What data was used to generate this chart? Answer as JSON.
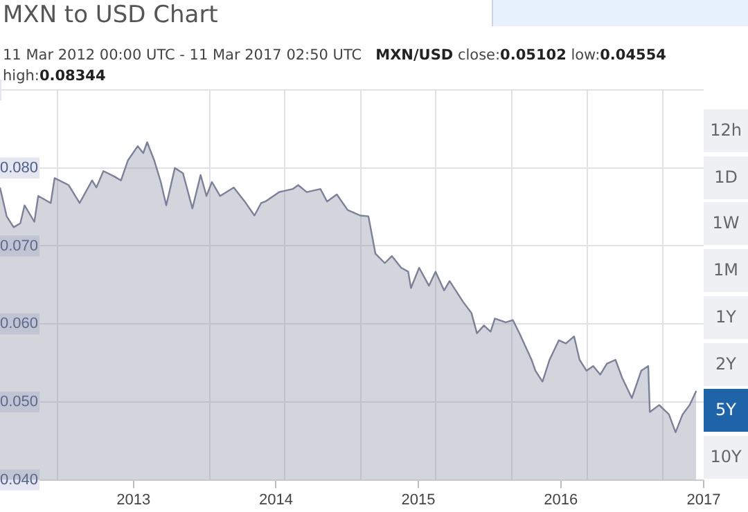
{
  "chart_data": {
    "type": "area",
    "title": "MXN to USD Chart",
    "subtitle": "11 Mar 2012 00:00 UTC - 11 Mar 2017 02:50 UTC",
    "annotations": [
      "MXN/USD close:0.05102 low:0.04554 high:0.08344",
      "12h",
      "1D",
      "1W",
      "1M",
      "1Y",
      "2Y",
      "5Y",
      "10Y"
    ],
    "x": [
      "2012-01-25",
      "2012-02-11",
      "2012-02-29",
      "2012-03-17",
      "2012-03-28",
      "2012-04-22",
      "2012-05-02",
      "2012-06-03",
      "2012-06-13",
      "2012-07-19",
      "2012-08-16",
      "2012-09-17",
      "2012-09-28",
      "2012-10-16",
      "2012-11-13",
      "2012-11-30",
      "2012-12-18",
      "2013-01-12",
      "2013-01-26",
      "2013-02-05",
      "2013-02-23",
      "2013-03-12",
      "2013-03-26",
      "2013-04-17",
      "2013-05-08",
      "2013-06-01",
      "2013-06-22",
      "2013-07-07",
      "2013-07-21",
      "2013-08-11",
      "2013-09-15",
      "2013-10-13",
      "2013-11-07",
      "2013-11-24",
      "2013-12-05",
      "2014-01-09",
      "2014-02-13",
      "2014-02-27",
      "2014-03-21",
      "2014-04-25",
      "2014-05-12",
      "2014-06-06",
      "2014-07-04",
      "2014-08-05",
      "2014-08-26",
      "2014-09-13",
      "2014-10-07",
      "2014-10-25",
      "2014-11-18",
      "2014-12-06",
      "2014-12-13",
      "2015-01-03",
      "2015-01-28",
      "2015-02-14",
      "2015-03-08",
      "2015-03-22",
      "2015-04-26",
      "2015-05-17",
      "2015-05-31",
      "2015-06-18",
      "2015-07-05",
      "2015-07-16",
      "2015-08-13",
      "2015-08-31",
      "2015-09-17",
      "2015-10-18",
      "2015-10-28",
      "2015-11-15",
      "2015-12-03",
      "2015-12-27",
      "2016-01-14",
      "2016-02-04",
      "2016-02-18",
      "2016-03-07",
      "2016-03-24",
      "2016-04-11",
      "2016-04-28",
      "2016-05-20",
      "2016-06-06",
      "2016-07-01",
      "2016-07-25",
      "2016-08-12",
      "2016-08-16",
      "2016-09-09",
      "2016-10-04",
      "2016-10-21",
      "2016-11-08",
      "2016-11-26",
      "2016-12-13"
    ],
    "series": [
      {
        "color": "#7b8199",
        "values": [
          0.0775,
          0.0738,
          0.0724,
          0.0729,
          0.0752,
          0.0731,
          0.0764,
          0.0755,
          0.0787,
          0.0778,
          0.0755,
          0.0784,
          0.0775,
          0.0796,
          0.0789,
          0.0784,
          0.081,
          0.0828,
          0.0819,
          0.0833,
          0.081,
          0.0782,
          0.0752,
          0.08,
          0.0793,
          0.0748,
          0.0791,
          0.0764,
          0.0782,
          0.0764,
          0.0775,
          0.0757,
          0.0739,
          0.0755,
          0.0757,
          0.0769,
          0.0773,
          0.0778,
          0.0769,
          0.0773,
          0.0757,
          0.0766,
          0.0746,
          0.0739,
          0.0738,
          0.069,
          0.0678,
          0.0687,
          0.0672,
          0.0667,
          0.0646,
          0.0672,
          0.0649,
          0.0667,
          0.0643,
          0.0655,
          0.0628,
          0.0614,
          0.0588,
          0.0598,
          0.059,
          0.0607,
          0.0602,
          0.0605,
          0.0588,
          0.0554,
          0.054,
          0.0526,
          0.0554,
          0.0579,
          0.0575,
          0.0584,
          0.0554,
          0.054,
          0.0546,
          0.0535,
          0.0549,
          0.0554,
          0.0531,
          0.0505,
          0.054,
          0.0546,
          0.0487,
          0.0496,
          0.0484,
          0.0461,
          0.0484,
          0.0496,
          0.0514
        ]
      }
    ],
    "xlim": [
      "2012-01-25",
      "2017-01-01"
    ],
    "xticks": [
      {
        "value": "2012-06-21",
        "label": null
      },
      {
        "value": "2013-01-01",
        "label": "2013"
      },
      {
        "value": "2013-07-16",
        "label": null
      },
      {
        "value": "2014-01-01",
        "label": "2014"
      },
      {
        "value": "2014-01-24",
        "label": null
      },
      {
        "value": "2014-08-06",
        "label": null
      },
      {
        "value": "2015-01-01",
        "label": "2015"
      },
      {
        "value": "2015-02-15",
        "label": null
      },
      {
        "value": "2015-08-29",
        "label": null
      },
      {
        "value": "2016-01-01",
        "label": "2016"
      },
      {
        "value": "2016-03-09",
        "label": null
      },
      {
        "value": "2016-09-19",
        "label": null
      },
      {
        "value": "2017-01-01",
        "label": "2017"
      }
    ],
    "ylim": [
      0.04,
      0.09
    ],
    "yticks": [
      {
        "value": 0.04,
        "label": "0.040"
      },
      {
        "value": 0.05,
        "label": "0.050"
      },
      {
        "value": 0.06,
        "label": "0.060"
      },
      {
        "value": 0.07,
        "label": "0.070"
      },
      {
        "value": 0.08,
        "label": "0.080"
      },
      {
        "value": 0.09,
        "label": null
      }
    ],
    "grid": true,
    "marker": "none",
    "line_style": "solid"
  }
}
